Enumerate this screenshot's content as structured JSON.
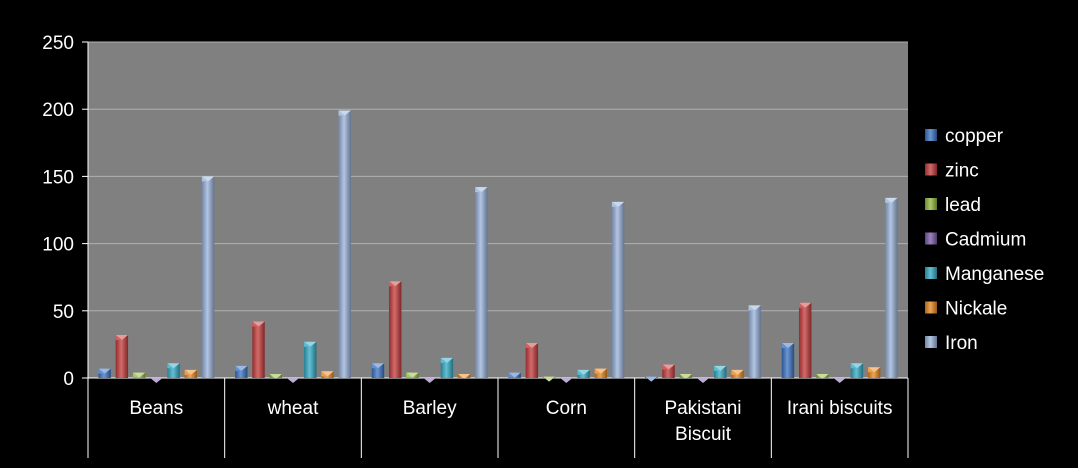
{
  "chart_data": {
    "type": "bar",
    "title": "",
    "xlabel": "",
    "ylabel": "",
    "ylim": [
      0,
      250
    ],
    "yticks": [
      0,
      50,
      100,
      150,
      200,
      250
    ],
    "grid": true,
    "legend_position": "right",
    "categories": [
      "Beans",
      "wheat",
      "Barley",
      "Corn",
      "Pakistani Biscuit",
      "Irani biscuits"
    ],
    "series": [
      {
        "name": "copper",
        "color": "#3a73c4",
        "values": [
          7,
          9,
          11,
          4,
          1,
          26
        ]
      },
      {
        "name": "zinc",
        "color": "#c43a3a",
        "values": [
          32,
          42,
          72,
          26,
          10,
          56
        ]
      },
      {
        "name": "lead",
        "color": "#8fb83a",
        "values": [
          4,
          3,
          4,
          1,
          3,
          3
        ]
      },
      {
        "name": "Cadmium",
        "color": "#7a5aa8",
        "values": [
          0,
          0,
          0,
          0,
          0,
          0
        ]
      },
      {
        "name": "Manganese",
        "color": "#32a9c4",
        "values": [
          11,
          27,
          15,
          6,
          9,
          11
        ]
      },
      {
        "name": "Nickale",
        "color": "#e8861e",
        "values": [
          6,
          5,
          3,
          7,
          6,
          8
        ]
      },
      {
        "name": "Iron",
        "color": "#98b2da",
        "values": [
          150,
          199,
          142,
          131,
          54,
          134
        ]
      }
    ]
  }
}
